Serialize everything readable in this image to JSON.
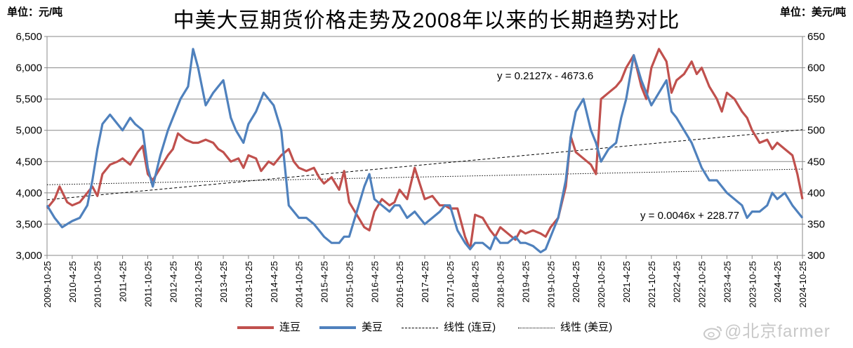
{
  "header": {
    "title": "中美大豆期货价格走势及2008年以来的长期趋势对比",
    "left_unit": "单位：元/吨",
    "right_unit": "单位：美元/吨"
  },
  "watermark": "@北京farmer",
  "chart_data": {
    "type": "line",
    "title": "中美大豆期货价格走势及2008年以来的长期趋势对比",
    "xlabel": "",
    "ylabel_left": "单位：元/吨",
    "ylabel_right": "单位：美元/吨",
    "ylim_left": [
      3000,
      6500
    ],
    "ylim_right": [
      300,
      650
    ],
    "yticks_left": [
      "3,000",
      "3,500",
      "4,000",
      "4,500",
      "5,000",
      "5,500",
      "6,000",
      "6,500"
    ],
    "yticks_right": [
      "300",
      "350",
      "400",
      "450",
      "500",
      "550",
      "600",
      "650"
    ],
    "x_tick_labels": [
      "2009-10-25",
      "2010-4-25",
      "2010-10-25",
      "2011-4-25",
      "2011-10-25",
      "2012-4-25",
      "2012-10-25",
      "2013-4-25",
      "2013-10-25",
      "2014-4-25",
      "2014-10-25",
      "2015-4-25",
      "2015-10-25",
      "2016-4-25",
      "2016-10-25",
      "2017-4-25",
      "2017-10-25",
      "2018-4-25",
      "2018-10-25",
      "2019-4-25",
      "2019-10-25",
      "2020-4-25",
      "2020-10-25",
      "2021-4-25",
      "2021-10-25",
      "2022-4-25",
      "2022-10-25",
      "2023-4-25",
      "2023-10-25",
      "2024-4-25",
      "2024-10-25"
    ],
    "x_period_count": 30,
    "grid": true,
    "legend_position": "bottom",
    "legend": [
      "连豆",
      "美豆",
      "线性 (连豆)",
      "线性 (美豆)"
    ],
    "series": [
      {
        "name": "连豆",
        "axis": "left",
        "color": "#c0504d",
        "x": [
          0,
          0.3,
          0.5,
          0.8,
          1.0,
          1.3,
          1.6,
          1.8,
          2.0,
          2.2,
          2.5,
          2.8,
          3.0,
          3.3,
          3.6,
          3.8,
          4.0,
          4.2,
          4.5,
          4.8,
          5.0,
          5.2,
          5.5,
          5.8,
          6.0,
          6.3,
          6.6,
          6.8,
          7.0,
          7.3,
          7.6,
          7.8,
          8.0,
          8.3,
          8.5,
          8.8,
          9.0,
          9.3,
          9.6,
          9.8,
          10.0,
          10.3,
          10.6,
          10.8,
          11.0,
          11.3,
          11.6,
          11.8,
          12.0,
          12.3,
          12.6,
          12.8,
          13.0,
          13.3,
          13.6,
          13.8,
          14.0,
          14.3,
          14.6,
          14.8,
          15.0,
          15.3,
          15.6,
          15.8,
          16.0,
          16.3,
          16.6,
          16.8,
          17.0,
          17.3,
          17.6,
          17.8,
          18.0,
          18.3,
          18.6,
          18.8,
          19.0,
          19.3,
          19.6,
          19.8,
          20.0,
          20.3,
          20.6,
          20.8,
          21.0,
          21.3,
          21.6,
          21.8,
          22.0,
          22.3,
          22.6,
          22.8,
          23.0,
          23.3,
          23.6,
          23.8,
          24.0,
          24.3,
          24.6,
          24.8,
          25.0,
          25.3,
          25.6,
          25.8,
          26.0,
          26.3,
          26.6,
          26.8,
          27.0,
          27.3,
          27.6,
          27.8,
          28.0,
          28.3,
          28.6,
          28.8,
          29.0,
          29.3,
          29.6,
          29.8,
          30.0
        ],
        "values": [
          3750,
          3900,
          4100,
          3850,
          3800,
          3850,
          4000,
          4100,
          3950,
          4300,
          4450,
          4500,
          4550,
          4450,
          4650,
          4750,
          4300,
          4200,
          4400,
          4600,
          4700,
          4950,
          4850,
          4800,
          4800,
          4850,
          4800,
          4700,
          4650,
          4500,
          4550,
          4400,
          4600,
          4550,
          4350,
          4500,
          4450,
          4600,
          4700,
          4500,
          4400,
          4350,
          4400,
          4250,
          4150,
          4250,
          4050,
          4350,
          3850,
          3650,
          3450,
          3400,
          3700,
          3900,
          3800,
          3850,
          4050,
          3900,
          4400,
          4150,
          3900,
          3950,
          3800,
          3800,
          3750,
          3750,
          3300,
          3100,
          3650,
          3600,
          3400,
          3300,
          3450,
          3350,
          3250,
          3400,
          3350,
          3400,
          3350,
          3300,
          3450,
          3600,
          4100,
          4900,
          4650,
          4550,
          4450,
          4300,
          5500,
          5600,
          5700,
          5800,
          6000,
          6200,
          5700,
          5500,
          6000,
          6300,
          6100,
          5600,
          5800,
          5900,
          6100,
          5900,
          6000,
          5700,
          5500,
          5300,
          5600,
          5500,
          5300,
          5200,
          5000,
          4800,
          4850,
          4700,
          4800,
          4700,
          4600,
          4300,
          3900
        ]
      },
      {
        "name": "美豆",
        "axis": "right",
        "color": "#4f81bd",
        "x": [
          0,
          0.3,
          0.6,
          0.8,
          1.0,
          1.3,
          1.6,
          1.8,
          2.0,
          2.2,
          2.5,
          2.8,
          3.0,
          3.3,
          3.5,
          3.8,
          4.0,
          4.2,
          4.5,
          4.8,
          5.0,
          5.3,
          5.6,
          5.8,
          6.0,
          6.3,
          6.6,
          6.8,
          7.0,
          7.3,
          7.5,
          7.8,
          8.0,
          8.3,
          8.6,
          8.8,
          9.0,
          9.3,
          9.6,
          9.8,
          10.0,
          10.3,
          10.6,
          10.8,
          11.0,
          11.3,
          11.6,
          11.8,
          12.0,
          12.3,
          12.6,
          12.8,
          13.0,
          13.3,
          13.6,
          13.8,
          14.0,
          14.3,
          14.6,
          14.8,
          15.0,
          15.3,
          15.6,
          15.8,
          16.0,
          16.3,
          16.6,
          16.8,
          17.0,
          17.3,
          17.6,
          17.8,
          18.0,
          18.3,
          18.6,
          18.8,
          19.0,
          19.3,
          19.6,
          19.8,
          20.0,
          20.3,
          20.6,
          20.8,
          21.0,
          21.3,
          21.6,
          21.8,
          22.0,
          22.3,
          22.6,
          22.8,
          23.0,
          23.3,
          23.6,
          23.8,
          24.0,
          24.3,
          24.6,
          24.8,
          25.0,
          25.3,
          25.6,
          25.8,
          26.0,
          26.3,
          26.6,
          26.8,
          27.0,
          27.3,
          27.6,
          27.8,
          28.0,
          28.3,
          28.6,
          28.8,
          29.0,
          29.3,
          29.6,
          29.8,
          30.0
        ],
        "values": [
          380,
          360,
          345,
          350,
          355,
          360,
          380,
          420,
          470,
          510,
          525,
          510,
          500,
          520,
          510,
          500,
          440,
          410,
          460,
          500,
          520,
          550,
          570,
          630,
          600,
          540,
          560,
          570,
          580,
          520,
          500,
          480,
          510,
          530,
          560,
          550,
          540,
          500,
          380,
          370,
          360,
          360,
          350,
          340,
          330,
          320,
          320,
          330,
          330,
          370,
          410,
          430,
          390,
          380,
          370,
          380,
          380,
          360,
          370,
          360,
          350,
          360,
          370,
          380,
          380,
          340,
          320,
          310,
          320,
          320,
          310,
          330,
          320,
          320,
          330,
          320,
          320,
          315,
          305,
          310,
          330,
          360,
          420,
          490,
          530,
          550,
          500,
          480,
          450,
          470,
          480,
          520,
          550,
          620,
          580,
          560,
          540,
          560,
          580,
          530,
          520,
          500,
          480,
          460,
          440,
          420,
          420,
          410,
          400,
          390,
          380,
          360,
          370,
          370,
          380,
          400,
          390,
          400,
          380,
          370,
          360
        ]
      },
      {
        "name": "线性 (连豆)",
        "axis": "left",
        "style": "dashed",
        "equation": "y = 0.2127x - 4673.6",
        "x": [
          0,
          30
        ],
        "values": [
          3890,
          5010
        ]
      },
      {
        "name": "线性 (美豆)",
        "axis": "right",
        "style": "dotted",
        "equation": "y = 0.0046x + 228.77",
        "x": [
          0,
          30
        ],
        "values": [
          413,
          438
        ]
      }
    ],
    "annotations": [
      {
        "text": "y = 0.2127x - 4673.6",
        "series": "线性 (连豆)"
      },
      {
        "text": "y = 0.0046x + 228.77",
        "series": "线性 (美豆)"
      }
    ]
  }
}
